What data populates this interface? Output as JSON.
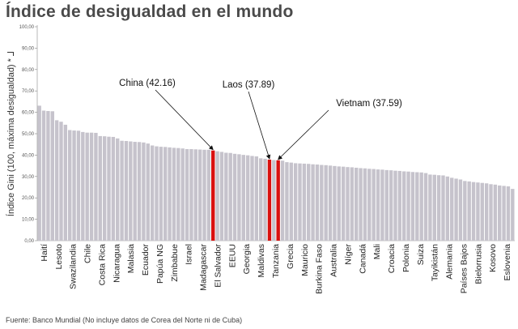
{
  "title": "Índice de desigualdad en el mundo",
  "footnote": "Fuente: Banco Mundial (No incluye datos de Corea del Norte ni de Cuba)",
  "colors": {
    "bar": "#c6c3cc",
    "highlight": "#d9100f",
    "axis": "#888888"
  },
  "chart_data": {
    "type": "bar",
    "ylabel": "Índice Gini (100, máxima desigualdad)",
    "ylabel_suffix": "* ⅃",
    "ylim": [
      0,
      100
    ],
    "yticks": [
      "0,00",
      "10,00",
      "20,00",
      "30,00",
      "40,00",
      "50,00",
      "60,00",
      "70,00",
      "80,00",
      "90,00",
      "100,00"
    ],
    "grid": false,
    "category_labels": [
      "Haití",
      "Lesoto",
      "Swazilandia",
      "Chile",
      "Costa Rica",
      "Nicaragua",
      "Malasia",
      "Ecuador",
      "Papúa NG",
      "Zimbabue",
      "Israel",
      "Madagascar",
      "El Salvador",
      "EEUU",
      "Georgia",
      "Maldivas",
      "Tanzania",
      "Grecia",
      "Mauricio",
      "Burkina Faso",
      "Australia",
      "Níger",
      "Canadá",
      "Mali",
      "Croacia",
      "Polonia",
      "Suiza",
      "Tayikistán",
      "Alemania",
      "Países Bajos",
      "Bielorrusia",
      "Kosovo",
      "Eslovenia"
    ],
    "values": [
      63.1,
      60.8,
      60.6,
      60.5,
      56.3,
      55.6,
      54.2,
      51.7,
      51.5,
      51.4,
      50.8,
      50.5,
      50.5,
      50.4,
      48.9,
      48.8,
      48.6,
      48.5,
      47.8,
      46.7,
      46.6,
      46.4,
      46.2,
      46.1,
      45.9,
      45.4,
      44.5,
      44.1,
      43.9,
      43.8,
      43.6,
      43.4,
      43.3,
      43.1,
      42.8,
      42.8,
      42.7,
      42.6,
      42.5,
      42.5,
      42.16,
      41.8,
      41.5,
      41.1,
      41.0,
      40.6,
      40.4,
      40.1,
      39.9,
      39.6,
      39.4,
      38.5,
      38.3,
      37.89,
      37.7,
      37.59,
      37.4,
      36.7,
      36.5,
      36.2,
      36.1,
      36.0,
      35.9,
      35.7,
      35.6,
      35.4,
      35.3,
      35.1,
      34.9,
      34.7,
      34.6,
      34.4,
      34.3,
      34.1,
      33.9,
      33.8,
      33.6,
      33.5,
      33.3,
      33.2,
      33.0,
      32.9,
      32.7,
      32.6,
      32.4,
      32.3,
      32.1,
      32.0,
      31.9,
      31.6,
      30.9,
      30.8,
      30.6,
      30.5,
      30.0,
      29.4,
      29.0,
      28.6,
      27.9,
      27.7,
      27.4,
      27.2,
      27.0,
      26.8,
      26.4,
      26.2,
      25.8,
      25.6,
      25.4,
      24.2
    ],
    "highlighted": [
      {
        "label": "China (42.16)",
        "value": 42.16
      },
      {
        "label": "Laos (37.89)",
        "value": 37.89
      },
      {
        "label": "Vietnam (37.59)",
        "value": 37.59
      }
    ]
  }
}
